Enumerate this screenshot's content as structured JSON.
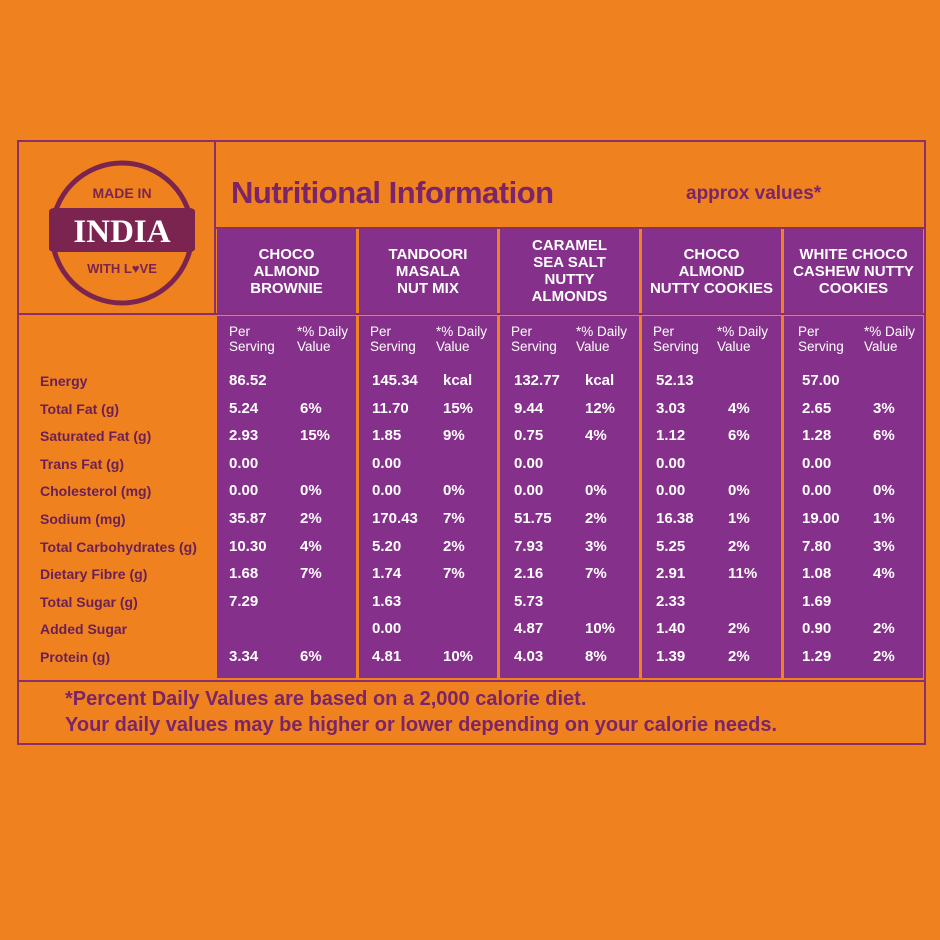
{
  "logo": {
    "top_text": "MADE IN",
    "main_text": "INDIA",
    "bottom_text": "WITH L♥VE"
  },
  "header": {
    "title": "Nutritional Information",
    "approx": "approx values*"
  },
  "products": [
    {
      "name": "CHOCO ALMOND BROWNIE",
      "lines": [
        "CHOCO",
        "ALMOND",
        "BROWNIE"
      ]
    },
    {
      "name": "TANDOORI MASALA NUT MIX",
      "lines": [
        "TANDOORI",
        "MASALA",
        "NUT MIX"
      ]
    },
    {
      "name": "CARAMEL SEA SALT NUTTY ALMONDS",
      "lines": [
        "CARAMEL",
        "SEA SALT",
        "NUTTY",
        "ALMONDS"
      ]
    },
    {
      "name": "CHOCO ALMOND NUTTY COOKIES",
      "lines": [
        "CHOCO",
        "ALMOND",
        "NUTTY COOKIES"
      ]
    },
    {
      "name": "WHITE CHOCO CASHEW NUTTY COOKIES",
      "lines": [
        "WHITE CHOCO",
        "CASHEW NUTTY",
        "COOKIES"
      ]
    }
  ],
  "subheaders": {
    "per": "Per",
    "serving": "Serving",
    "daily": "*% Daily",
    "value": "Value"
  },
  "rows": [
    {
      "label": "Energy",
      "cells": [
        [
          "86.52",
          ""
        ],
        [
          "145.34",
          "kcal"
        ],
        [
          "132.77",
          "kcal"
        ],
        [
          "52.13",
          ""
        ],
        [
          "57.00",
          ""
        ]
      ]
    },
    {
      "label": "Total Fat (g)",
      "cells": [
        [
          "5.24",
          "6%"
        ],
        [
          "11.70",
          "15%"
        ],
        [
          "9.44",
          "12%"
        ],
        [
          "3.03",
          "4%"
        ],
        [
          "2.65",
          "3%"
        ]
      ]
    },
    {
      "label": "Saturated Fat (g)",
      "cells": [
        [
          "2.93",
          "15%"
        ],
        [
          "1.85",
          "9%"
        ],
        [
          "0.75",
          "4%"
        ],
        [
          "1.12",
          "6%"
        ],
        [
          "1.28",
          "6%"
        ]
      ]
    },
    {
      "label": "Trans Fat (g)",
      "cells": [
        [
          "0.00",
          ""
        ],
        [
          "0.00",
          ""
        ],
        [
          "0.00",
          ""
        ],
        [
          "0.00",
          ""
        ],
        [
          "0.00",
          ""
        ]
      ]
    },
    {
      "label": "Cholesterol (mg)",
      "cells": [
        [
          "0.00",
          "0%"
        ],
        [
          "0.00",
          "0%"
        ],
        [
          "0.00",
          "0%"
        ],
        [
          "0.00",
          "0%"
        ],
        [
          "0.00",
          "0%"
        ]
      ]
    },
    {
      "label": "Sodium (mg)",
      "cells": [
        [
          "35.87",
          "2%"
        ],
        [
          "170.43",
          "7%"
        ],
        [
          "51.75",
          "2%"
        ],
        [
          "16.38",
          "1%"
        ],
        [
          "19.00",
          "1%"
        ]
      ]
    },
    {
      "label": "Total Carbohydrates (g)",
      "cells": [
        [
          "10.30",
          "4%"
        ],
        [
          "5.20",
          "2%"
        ],
        [
          "7.93",
          "3%"
        ],
        [
          "5.25",
          "2%"
        ],
        [
          "7.80",
          "3%"
        ]
      ]
    },
    {
      "label": "Dietary Fibre (g)",
      "cells": [
        [
          "1.68",
          "7%"
        ],
        [
          "1.74",
          "7%"
        ],
        [
          "2.16",
          "7%"
        ],
        [
          "2.91",
          "11%"
        ],
        [
          "1.08",
          "4%"
        ]
      ]
    },
    {
      "label": "Total Sugar (g)",
      "cells": [
        [
          "7.29",
          ""
        ],
        [
          "1.63",
          ""
        ],
        [
          "5.73",
          ""
        ],
        [
          "2.33",
          ""
        ],
        [
          "1.69",
          ""
        ]
      ]
    },
    {
      "label": "Added Sugar",
      "cells": [
        [
          "",
          ""
        ],
        [
          "0.00",
          ""
        ],
        [
          "4.87",
          "10%"
        ],
        [
          "1.40",
          "2%"
        ],
        [
          "0.90",
          "2%"
        ]
      ]
    },
    {
      "label": "Protein (g)",
      "cells": [
        [
          "3.34",
          "6%"
        ],
        [
          "4.81",
          "10%"
        ],
        [
          "4.03",
          "8%"
        ],
        [
          "1.39",
          "2%"
        ],
        [
          "1.29",
          "2%"
        ]
      ]
    }
  ],
  "footer": {
    "line1": "*Percent Daily Values are based on a 2,000 calorie diet.",
    "line2": "Your daily values may be higher or lower depending on your calorie needs."
  },
  "colors": {
    "background": "#f0811f",
    "purple": "#85308b",
    "text_purple": "#7a2469",
    "logo_maroon": "#7b2450"
  }
}
